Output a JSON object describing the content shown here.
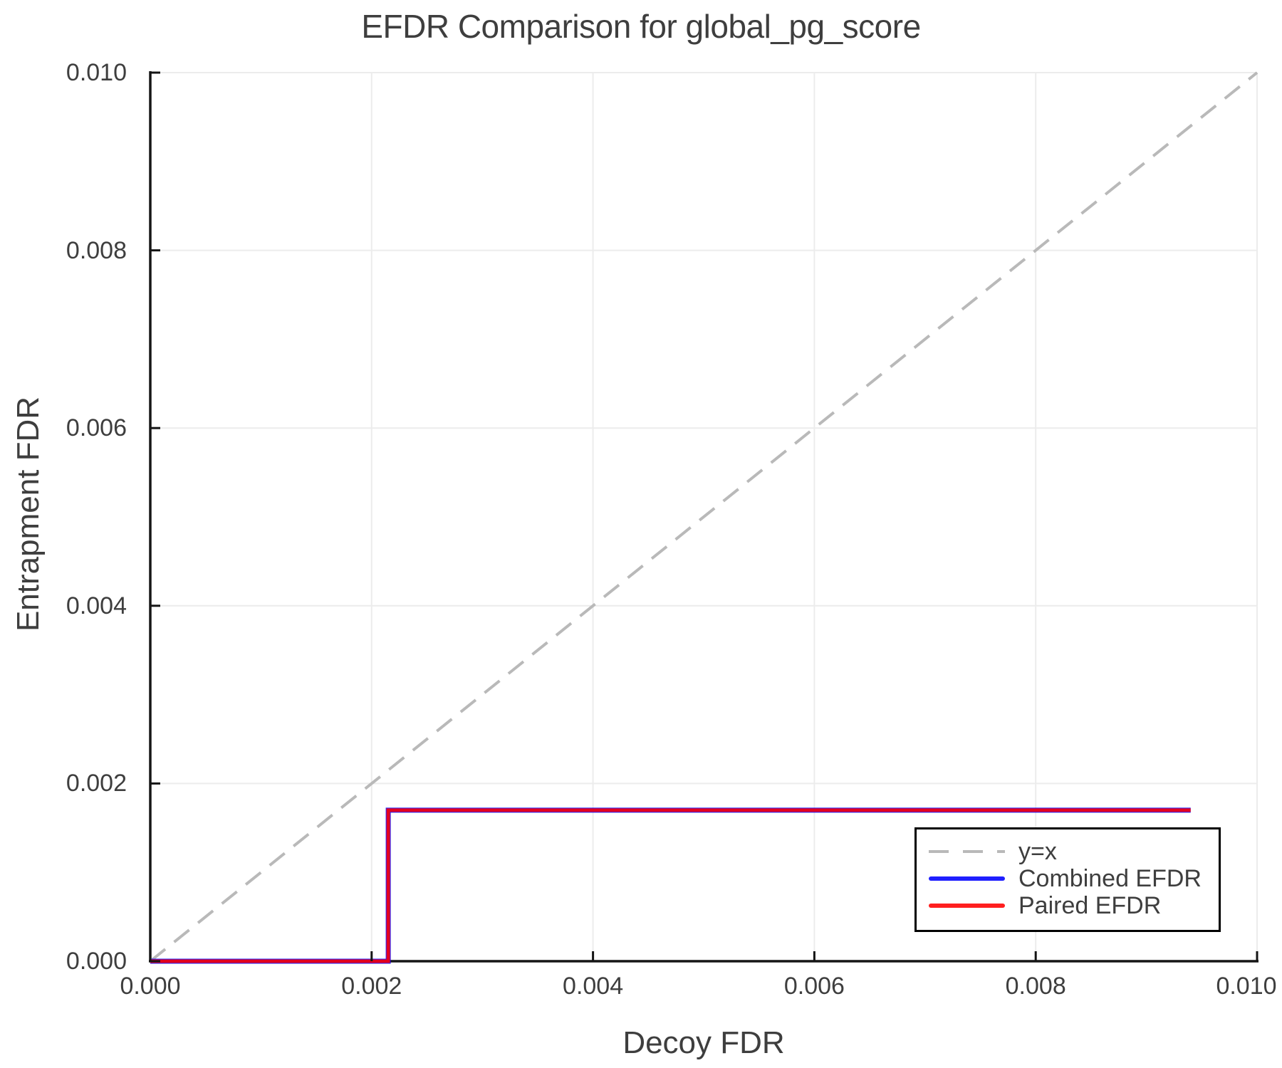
{
  "chart_data": {
    "type": "line",
    "title": "EFDR Comparison for global_pg_score",
    "xlabel": "Decoy FDR",
    "ylabel": "Entrapment FDR",
    "xlim": [
      0.0,
      0.01
    ],
    "ylim": [
      0.0,
      0.01
    ],
    "grid": true,
    "grid_color": "#ececec",
    "axis_color": "#151515",
    "text_color": "#3e3e3e",
    "legend_position": "lower right",
    "x_ticks": {
      "values": [
        0.0,
        0.002,
        0.004,
        0.006,
        0.008,
        0.01
      ],
      "labels": [
        "0.000",
        "0.002",
        "0.004",
        "0.006",
        "0.008",
        "0.010"
      ]
    },
    "y_ticks": {
      "values": [
        0.0,
        0.002,
        0.004,
        0.006,
        0.008,
        0.01
      ],
      "labels": [
        "0.000",
        "0.002",
        "0.004",
        "0.006",
        "0.008",
        "0.010"
      ]
    },
    "series": [
      {
        "name": "y=x",
        "color": "#b9b9b9",
        "alpha": 1,
        "style": "dashed",
        "width": 4,
        "points": [
          [
            0.0,
            0.0
          ],
          [
            0.01,
            0.01
          ]
        ]
      },
      {
        "name": "Combined EFDR",
        "color": "#0000ff",
        "alpha": 0.88,
        "style": "solid",
        "width": 7,
        "points": [
          [
            0.0,
            0.0
          ],
          [
            0.00215,
            0.0
          ],
          [
            0.00215,
            0.0017
          ],
          [
            0.0094,
            0.0017
          ]
        ]
      },
      {
        "name": "Paired EFDR",
        "color": "#ff0000",
        "alpha": 0.88,
        "style": "solid",
        "width": 5,
        "points": [
          [
            0.0,
            0.0
          ],
          [
            0.00215,
            0.0
          ],
          [
            0.00215,
            0.0017
          ],
          [
            0.0094,
            0.0017
          ]
        ]
      }
    ]
  }
}
